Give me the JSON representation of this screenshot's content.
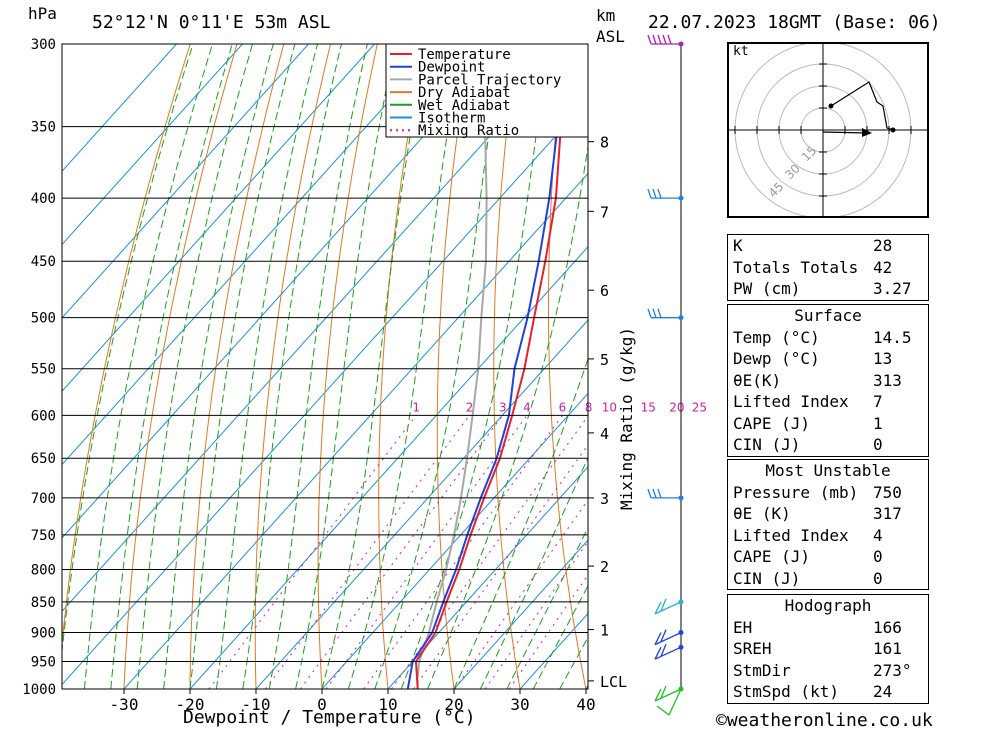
{
  "header": {
    "pressure_unit": "hPa",
    "location": "52°12'N  0°11'E  53m  ASL",
    "km_unit": "km",
    "asl_unit": "ASL",
    "datetime": "22.07.2023  18GMT  (Base: 06)"
  },
  "chart_data": {
    "type": "skew-t",
    "pressure_levels": [
      300,
      350,
      400,
      450,
      500,
      550,
      600,
      650,
      700,
      750,
      800,
      850,
      900,
      950,
      1000
    ],
    "x_ticks": [
      -30,
      -20,
      -10,
      0,
      10,
      20,
      30,
      40
    ],
    "xlim": [
      -40,
      40
    ],
    "ylim": [
      1000,
      300
    ],
    "xlabel": "Dewpoint / Temperature (°C)",
    "ylabel": "hPa",
    "km_ticks": [
      {
        "label": "8",
        "p": 360
      },
      {
        "label": "7",
        "p": 410
      },
      {
        "label": "6",
        "p": 475
      },
      {
        "label": "5",
        "p": 540
      },
      {
        "label": "4",
        "p": 620
      },
      {
        "label": "3",
        "p": 700
      },
      {
        "label": "2",
        "p": 795
      },
      {
        "label": "1",
        "p": 895
      },
      {
        "label": "LCL",
        "p": 985
      }
    ],
    "mixing_ratio_label": "Mixing Ratio (g/kg)",
    "mixing_ratio_values": [
      "1",
      "2",
      "3",
      "4",
      "6",
      "8",
      "10",
      "15",
      "20",
      "25"
    ],
    "legend": [
      "Temperature",
      "Dewpoint",
      "Parcel Trajectory",
      "Dry Adiabat",
      "Wet Adiabat",
      "Isotherm",
      "Mixing Ratio"
    ],
    "colors": {
      "temperature": "#e8202a",
      "dewpoint": "#2040e0",
      "parcel": "#a8a8a8",
      "dry_adiabat": "#e07a20",
      "wet_adiabat": "#1aa01a",
      "isotherm": "#1e90e0",
      "mixing_ratio": "#d020a0"
    },
    "temperature": [
      {
        "p": 1000,
        "t": 14.5
      },
      {
        "p": 950,
        "t": 10.5
      },
      {
        "p": 900,
        "t": 9.5
      },
      {
        "p": 850,
        "t": 7.0
      },
      {
        "p": 800,
        "t": 4.5
      },
      {
        "p": 750,
        "t": 1.5
      },
      {
        "p": 700,
        "t": -1.5
      },
      {
        "p": 650,
        "t": -4.5
      },
      {
        "p": 600,
        "t": -8.5
      },
      {
        "p": 550,
        "t": -13.0
      },
      {
        "p": 500,
        "t": -18.5
      },
      {
        "p": 450,
        "t": -24.5
      },
      {
        "p": 400,
        "t": -31.5
      },
      {
        "p": 350,
        "t": -40.5
      },
      {
        "p": 300,
        "t": -49.5
      }
    ],
    "dewpoint": [
      {
        "p": 1000,
        "t": 13.0
      },
      {
        "p": 950,
        "t": 10.0
      },
      {
        "p": 900,
        "t": 9.0
      },
      {
        "p": 850,
        "t": 6.5
      },
      {
        "p": 800,
        "t": 4.0
      },
      {
        "p": 750,
        "t": 1.0
      },
      {
        "p": 700,
        "t": -2.0
      },
      {
        "p": 650,
        "t": -5.0
      },
      {
        "p": 600,
        "t": -9.0
      },
      {
        "p": 550,
        "t": -14.5
      },
      {
        "p": 500,
        "t": -19.5
      },
      {
        "p": 450,
        "t": -25.5
      },
      {
        "p": 400,
        "t": -32.5
      },
      {
        "p": 350,
        "t": -41.0
      },
      {
        "p": 300,
        "t": -50.0
      }
    ],
    "parcel": [
      {
        "p": 1000,
        "t": 14.5
      },
      {
        "p": 980,
        "t": 13.0
      },
      {
        "p": 950,
        "t": 11.0
      },
      {
        "p": 900,
        "t": 8.5
      },
      {
        "p": 850,
        "t": 5.5
      },
      {
        "p": 800,
        "t": 2.5
      },
      {
        "p": 750,
        "t": -1.0
      },
      {
        "p": 700,
        "t": -5.0
      },
      {
        "p": 650,
        "t": -9.5
      },
      {
        "p": 600,
        "t": -14.5
      },
      {
        "p": 550,
        "t": -20.0
      },
      {
        "p": 500,
        "t": -26.5
      },
      {
        "p": 450,
        "t": -33.5
      },
      {
        "p": 400,
        "t": -42.0
      },
      {
        "p": 350,
        "t": -52.0
      },
      {
        "p": 320,
        "t": -58.0
      }
    ],
    "wind_levels": [
      300,
      400,
      500,
      700,
      850,
      900,
      925,
      1000
    ]
  },
  "hodograph": {
    "unit": "kt",
    "ring_labels": [
      "15",
      "30",
      "45"
    ]
  },
  "indices": {
    "general": [
      {
        "key": "K",
        "value": "28"
      },
      {
        "key": "Totals Totals",
        "value": "42"
      },
      {
        "key": "PW (cm)",
        "value": "3.27"
      }
    ],
    "surface_title": "Surface",
    "surface": [
      {
        "key": "Temp (°C)",
        "value": "14.5"
      },
      {
        "key": "Dewp (°C)",
        "value": "13"
      },
      {
        "key": "θE(K)",
        "value": "313"
      },
      {
        "key": "Lifted Index",
        "value": "7"
      },
      {
        "key": "CAPE (J)",
        "value": "1"
      },
      {
        "key": "CIN (J)",
        "value": "0"
      }
    ],
    "unstable_title": "Most Unstable",
    "unstable": [
      {
        "key": "Pressure (mb)",
        "value": "750"
      },
      {
        "key": "θE (K)",
        "value": "317"
      },
      {
        "key": "Lifted Index",
        "value": "4"
      },
      {
        "key": "CAPE (J)",
        "value": "0"
      },
      {
        "key": "CIN (J)",
        "value": "0"
      }
    ],
    "hodograph_title": "Hodograph",
    "hodograph": [
      {
        "key": "EH",
        "value": "166"
      },
      {
        "key": "SREH",
        "value": "161"
      },
      {
        "key": "StmDir",
        "value": "273°"
      },
      {
        "key": "StmSpd (kt)",
        "value": "24"
      }
    ]
  },
  "footer": {
    "copyright_symbol": "©",
    "site": "weatheronline.co.uk"
  }
}
